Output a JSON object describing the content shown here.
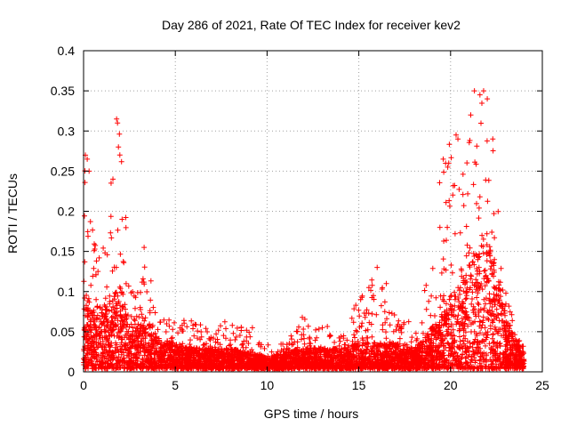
{
  "chart_data": {
    "type": "scatter",
    "title": "Day 286 of 2021, Rate Of TEC Index for receiver kev2",
    "xlabel": "GPS time / hours",
    "ylabel": "ROTI / TECUs",
    "xlim": [
      0,
      25
    ],
    "ylim": [
      0,
      0.4
    ],
    "xticks": [
      0,
      5,
      10,
      15,
      20,
      25
    ],
    "xtick_labels": [
      "0",
      "5",
      "10",
      "15",
      "20",
      "25"
    ],
    "yticks": [
      0,
      0.05,
      0.1,
      0.15,
      0.2,
      0.25,
      0.3,
      0.35,
      0.4
    ],
    "ytick_labels": [
      "0",
      "0.05",
      "0.1",
      "0.15",
      "0.2",
      "0.25",
      "0.3",
      "0.35",
      "0.4"
    ],
    "grid": true,
    "marker": "+",
    "color": "#ff0000",
    "x_range_hours": [
      0,
      24
    ],
    "series": [
      {
        "name": "ROTI",
        "profile_hours": [
          0,
          0.5,
          1,
          1.5,
          2,
          2.5,
          3,
          3.5,
          4,
          5,
          6,
          7,
          8,
          9,
          10,
          11,
          12,
          13,
          14,
          15,
          16,
          17,
          18,
          19,
          19.5,
          20,
          20.5,
          21,
          21.5,
          22,
          22.5,
          23,
          23.5,
          24
        ],
        "profile_envelope": [
          0.27,
          0.18,
          0.15,
          0.2,
          0.31,
          0.12,
          0.1,
          0.15,
          0.08,
          0.06,
          0.07,
          0.05,
          0.07,
          0.05,
          0.035,
          0.035,
          0.075,
          0.06,
          0.05,
          0.09,
          0.13,
          0.07,
          0.06,
          0.15,
          0.26,
          0.29,
          0.23,
          0.3,
          0.35,
          0.35,
          0.25,
          0.1,
          0.06,
          0.03
        ],
        "profile_typical": [
          0.07,
          0.06,
          0.06,
          0.07,
          0.08,
          0.05,
          0.05,
          0.05,
          0.03,
          0.025,
          0.02,
          0.02,
          0.02,
          0.015,
          0.012,
          0.015,
          0.02,
          0.02,
          0.02,
          0.025,
          0.025,
          0.025,
          0.02,
          0.04,
          0.05,
          0.07,
          0.08,
          0.1,
          0.12,
          0.13,
          0.1,
          0.05,
          0.03,
          0.015
        ],
        "spikes": [
          {
            "x": 0.1,
            "y": 0.27
          },
          {
            "x": 0.2,
            "y": 0.265
          },
          {
            "x": 0.3,
            "y": 0.25
          },
          {
            "x": 1.5,
            "y": 0.235
          },
          {
            "x": 1.6,
            "y": 0.24
          },
          {
            "x": 1.8,
            "y": 0.315
          },
          {
            "x": 1.85,
            "y": 0.31
          },
          {
            "x": 1.9,
            "y": 0.28
          },
          {
            "x": 2.1,
            "y": 0.19
          },
          {
            "x": 3.3,
            "y": 0.155
          },
          {
            "x": 9.2,
            "y": 0.055
          },
          {
            "x": 15.1,
            "y": 0.09
          },
          {
            "x": 16.0,
            "y": 0.13
          },
          {
            "x": 16.5,
            "y": 0.11
          },
          {
            "x": 19.6,
            "y": 0.265
          },
          {
            "x": 19.9,
            "y": 0.26
          },
          {
            "x": 20.3,
            "y": 0.295
          },
          {
            "x": 20.4,
            "y": 0.29
          },
          {
            "x": 21.1,
            "y": 0.32
          },
          {
            "x": 21.3,
            "y": 0.35
          },
          {
            "x": 21.6,
            "y": 0.345
          },
          {
            "x": 21.8,
            "y": 0.35
          },
          {
            "x": 22.0,
            "y": 0.34
          },
          {
            "x": 22.3,
            "y": 0.29
          }
        ]
      }
    ]
  }
}
